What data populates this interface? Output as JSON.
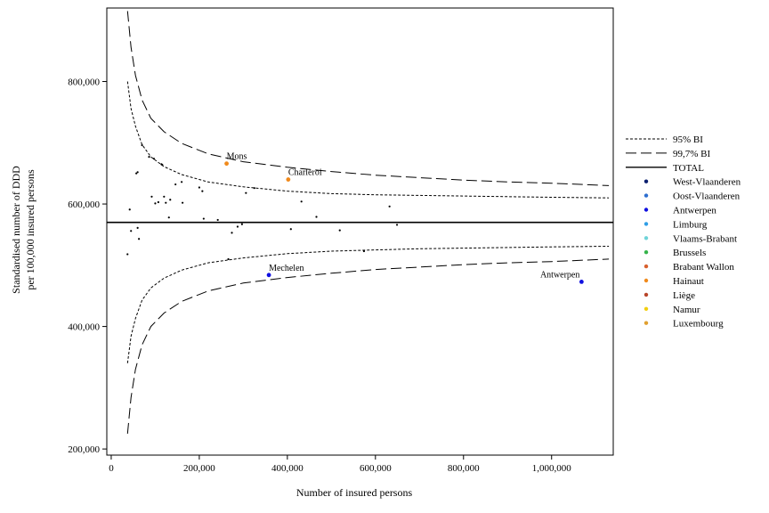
{
  "chart_data": {
    "type": "scatter",
    "title": "",
    "xlabel": "Number of insured persons",
    "ylabel_line1": "Standardised number of DDD",
    "ylabel_line2": "per 100,000 insured persons",
    "xlim": [
      -10000,
      1140000
    ],
    "ylim": [
      190000,
      920000
    ],
    "xticks": [
      0,
      200000,
      400000,
      600000,
      800000,
      1000000
    ],
    "xtick_labels": [
      "0",
      "200,000",
      "400,000",
      "600,000",
      "800,000",
      "1,000,000"
    ],
    "yticks": [
      200000,
      400000,
      600000,
      800000
    ],
    "ytick_labels": [
      "200,000",
      "400,000",
      "600,000",
      "800,000"
    ],
    "grid": false,
    "legend_position": "right",
    "total_line": {
      "name": "TOTAL",
      "y": 570000
    },
    "limits": [
      {
        "name": "95% BI",
        "style": "dotted",
        "upper": [
          [
            37000,
            800000
          ],
          [
            45000,
            756000
          ],
          [
            55000,
            727000
          ],
          [
            70000,
            697000
          ],
          [
            90000,
            677000
          ],
          [
            120000,
            661000
          ],
          [
            160000,
            648000
          ],
          [
            220000,
            636000
          ],
          [
            300000,
            628000
          ],
          [
            400000,
            621000
          ],
          [
            500000,
            617000
          ],
          [
            600000,
            615000
          ],
          [
            700000,
            614000
          ],
          [
            800000,
            613000
          ],
          [
            900000,
            612000
          ],
          [
            1000000,
            611000
          ],
          [
            1130000,
            610000
          ]
        ],
        "lower": [
          [
            37000,
            340000
          ],
          [
            45000,
            384000
          ],
          [
            55000,
            413000
          ],
          [
            70000,
            443000
          ],
          [
            90000,
            463000
          ],
          [
            120000,
            479000
          ],
          [
            160000,
            492000
          ],
          [
            220000,
            504000
          ],
          [
            300000,
            512000
          ],
          [
            400000,
            519000
          ],
          [
            500000,
            523000
          ],
          [
            600000,
            525000
          ],
          [
            700000,
            527000
          ],
          [
            800000,
            528000
          ],
          [
            900000,
            529000
          ],
          [
            1000000,
            530000
          ],
          [
            1130000,
            531000
          ]
        ]
      },
      {
        "name": "99,7% BI",
        "style": "dashed",
        "upper": [
          [
            37000,
            915000
          ],
          [
            45000,
            856000
          ],
          [
            55000,
            810000
          ],
          [
            70000,
            770000
          ],
          [
            90000,
            740000
          ],
          [
            120000,
            718000
          ],
          [
            160000,
            699000
          ],
          [
            220000,
            682000
          ],
          [
            300000,
            669000
          ],
          [
            400000,
            660000
          ],
          [
            500000,
            653000
          ],
          [
            600000,
            647000
          ],
          [
            700000,
            643000
          ],
          [
            800000,
            639000
          ],
          [
            900000,
            636000
          ],
          [
            1000000,
            634000
          ],
          [
            1130000,
            630000
          ]
        ],
        "lower": [
          [
            37000,
            225000
          ],
          [
            45000,
            284000
          ],
          [
            55000,
            330000
          ],
          [
            70000,
            370000
          ],
          [
            90000,
            400000
          ],
          [
            120000,
            422000
          ],
          [
            160000,
            441000
          ],
          [
            220000,
            458000
          ],
          [
            300000,
            471000
          ],
          [
            400000,
            480000
          ],
          [
            500000,
            487000
          ],
          [
            600000,
            493000
          ],
          [
            700000,
            497000
          ],
          [
            800000,
            501000
          ],
          [
            900000,
            504000
          ],
          [
            1000000,
            506000
          ],
          [
            1130000,
            510000
          ]
        ]
      }
    ],
    "series": [
      {
        "name": "West-Vlaanderen",
        "color": "#0b1f6e"
      },
      {
        "name": "Oost-Vlaanderen",
        "color": "#2e6fd0"
      },
      {
        "name": "Antwerpen",
        "color": "#1010e0"
      },
      {
        "name": "Limburg",
        "color": "#2f9ee6"
      },
      {
        "name": "Vlaams-Brabant",
        "color": "#6fd3d8"
      },
      {
        "name": "Brussels",
        "color": "#35b34a"
      },
      {
        "name": "Brabant Wallon",
        "color": "#d8602e"
      },
      {
        "name": "Hainaut",
        "color": "#f08a1c"
      },
      {
        "name": "Liège",
        "color": "#b8452a"
      },
      {
        "name": "Namur",
        "color": "#f2cf10"
      },
      {
        "name": "Luxembourg",
        "color": "#e0a030"
      }
    ],
    "points": [
      {
        "x": 262000,
        "y": 666000,
        "series": "Hainaut",
        "label": "Mons"
      },
      {
        "x": 402000,
        "y": 640000,
        "series": "Hainaut",
        "label": "Charleroi"
      },
      {
        "x": 358000,
        "y": 484000,
        "series": "Antwerpen",
        "label": "Mechelen"
      },
      {
        "x": 1068000,
        "y": 473000,
        "series": "Antwerpen",
        "label": "Antwerpen"
      },
      {
        "x": 37000,
        "y": 518000
      },
      {
        "x": 42000,
        "y": 591000
      },
      {
        "x": 45000,
        "y": 556000
      },
      {
        "x": 57000,
        "y": 650000
      },
      {
        "x": 60000,
        "y": 652000
      },
      {
        "x": 60000,
        "y": 561000
      },
      {
        "x": 63000,
        "y": 543000
      },
      {
        "x": 70000,
        "y": 696000
      },
      {
        "x": 86000,
        "y": 677000
      },
      {
        "x": 92000,
        "y": 612000
      },
      {
        "x": 97000,
        "y": 674000
      },
      {
        "x": 100000,
        "y": 601000
      },
      {
        "x": 107000,
        "y": 603000
      },
      {
        "x": 114000,
        "y": 665000
      },
      {
        "x": 116000,
        "y": 664000
      },
      {
        "x": 120000,
        "y": 612000
      },
      {
        "x": 124000,
        "y": 602000
      },
      {
        "x": 131000,
        "y": 578000
      },
      {
        "x": 134000,
        "y": 607000
      },
      {
        "x": 146000,
        "y": 632000
      },
      {
        "x": 160000,
        "y": 636000
      },
      {
        "x": 162000,
        "y": 602000
      },
      {
        "x": 200000,
        "y": 627000
      },
      {
        "x": 207000,
        "y": 621000
      },
      {
        "x": 210000,
        "y": 576000
      },
      {
        "x": 242000,
        "y": 574000
      },
      {
        "x": 266000,
        "y": 510000
      },
      {
        "x": 274000,
        "y": 553000
      },
      {
        "x": 287000,
        "y": 563000
      },
      {
        "x": 297000,
        "y": 567000
      },
      {
        "x": 306000,
        "y": 618000
      },
      {
        "x": 325000,
        "y": 626000
      },
      {
        "x": 408000,
        "y": 559000
      },
      {
        "x": 432000,
        "y": 604000
      },
      {
        "x": 466000,
        "y": 579000
      },
      {
        "x": 519000,
        "y": 557000
      },
      {
        "x": 574000,
        "y": 523000
      },
      {
        "x": 632000,
        "y": 596000
      },
      {
        "x": 649000,
        "y": 566000
      }
    ]
  }
}
